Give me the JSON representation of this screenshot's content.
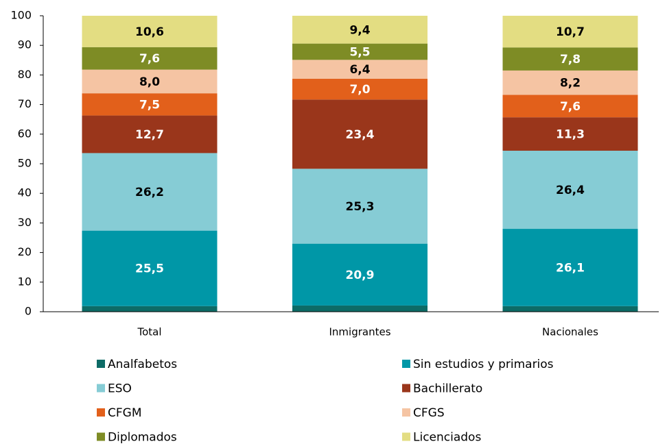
{
  "chart_data": {
    "type": "stacked-bar",
    "categories": [
      "Total",
      "Inmigrantes",
      "Nacionales"
    ],
    "series": [
      {
        "name": "Analfabetos",
        "color": "#0d6b66",
        "values": [
          1.9,
          2.1,
          1.9
        ]
      },
      {
        "name": "Sin estudios y primarios",
        "color": "#0097a7",
        "label_color": "#ffffff",
        "values": [
          25.5,
          20.9,
          26.1
        ],
        "value_labels": [
          "25,5",
          "20,9",
          "26,1"
        ]
      },
      {
        "name": "ESO",
        "color": "#86ccd5",
        "label_color": "#000000",
        "values": [
          26.2,
          25.3,
          26.4
        ],
        "value_labels": [
          "26,2",
          "25,3",
          "26,4"
        ]
      },
      {
        "name": "Bachillerato",
        "color": "#9a361b",
        "label_color": "#ffffff",
        "values": [
          12.7,
          23.4,
          11.3
        ],
        "value_labels": [
          "12,7",
          "23,4",
          "11,3"
        ]
      },
      {
        "name": "CFGM",
        "color": "#e2601b",
        "label_color": "#ffffff",
        "values": [
          7.5,
          7.0,
          7.6
        ],
        "value_labels": [
          "7,5",
          "7,0",
          "7,6"
        ]
      },
      {
        "name": "CFGS",
        "color": "#f5c4a3",
        "label_color": "#000000",
        "values": [
          8.0,
          6.4,
          8.2
        ],
        "value_labels": [
          "8,0",
          "6,4",
          "8,2"
        ]
      },
      {
        "name": "Diplomados",
        "color": "#7e8c25",
        "label_color": "#ffffff",
        "values": [
          7.6,
          5.5,
          7.8
        ],
        "value_labels": [
          "7,6",
          "5,5",
          "7,8"
        ]
      },
      {
        "name": "Licenciados",
        "color": "#e3dd82",
        "label_color": "#000000",
        "values": [
          10.6,
          9.4,
          10.7
        ],
        "value_labels": [
          "10,6",
          "9,4",
          "10,7"
        ]
      }
    ],
    "ylim": [
      0,
      100
    ],
    "yticks": [
      0,
      10,
      20,
      30,
      40,
      50,
      60,
      70,
      80,
      90,
      100
    ],
    "legend": "bottom"
  }
}
